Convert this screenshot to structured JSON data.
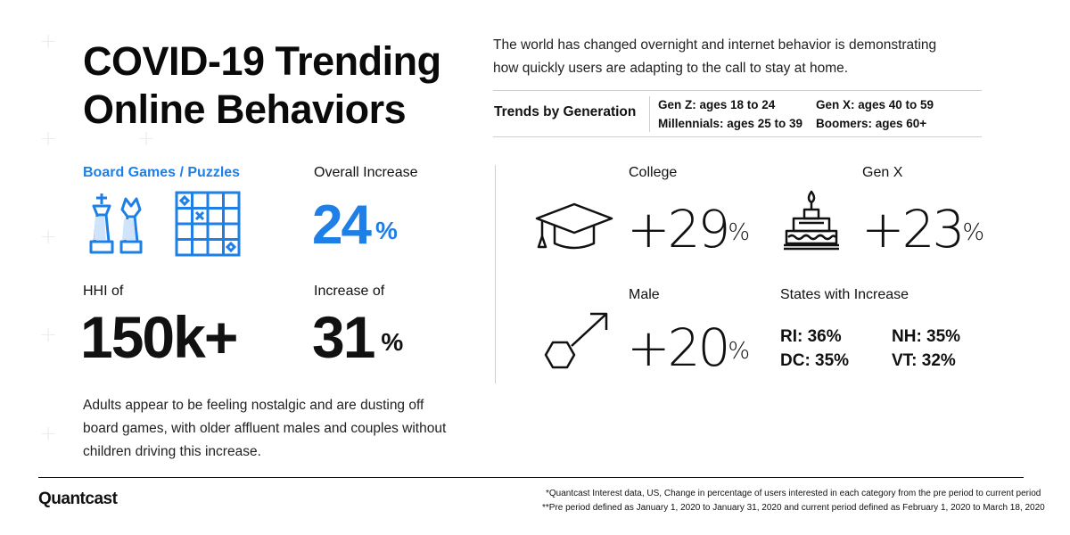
{
  "title": {
    "line1": "COVID-19 Trending",
    "line2": "Online Behaviors"
  },
  "intro": {
    "line1": "The world has changed overnight and internet behavior is demonstrating",
    "line2": "how quickly users are adapting to the call to stay at home."
  },
  "generations": {
    "heading": "Trends by Generation",
    "gen_z": "Gen Z: ages 18 to 24",
    "millennials": "Millennials: ages 25 to 39",
    "gen_x": "Gen X: ages 40 to 59",
    "boomers": "Boomers: ages 60+"
  },
  "category": {
    "label": "Board Games / Puzzles",
    "overall_label": "Overall Increase",
    "overall_value": "24",
    "overall_unit": "%",
    "hhi_label": "HHI of",
    "hhi_value": "150k+",
    "increase_label": "Increase of",
    "increase_value": "31",
    "increase_unit": "%"
  },
  "segments": {
    "college": {
      "label": "College",
      "value": "+29",
      "unit": "%",
      "icon": "graduation-cap-icon"
    },
    "genx": {
      "label": "Gen X",
      "value": "+23",
      "unit": "%",
      "icon": "birthday-cake-icon"
    },
    "male": {
      "label": "Male",
      "value": "+20",
      "unit": "%",
      "icon": "male-symbol-icon"
    },
    "states": {
      "label": "States with Increase",
      "ri": "RI: 36%",
      "nh": "NH: 35%",
      "dc": "DC: 35%",
      "vt": "VT: 32%"
    }
  },
  "description": {
    "line1": "Adults appear to be feeling nostalgic and are dusting off",
    "line2": "board games, with older affluent males and couples without",
    "line3": "children driving this increase."
  },
  "brand": "Quantcast",
  "footnotes": {
    "line1": "*Quantcast Interest data, US, Change in percentage of users interested in each category from the pre period to current period",
    "line2": "**Pre period defined as January 1, 2020   to January 31, 2020 and current period defined as February 1, 2020 to March 18, 2020"
  },
  "colors": {
    "accent": "#1e7fe6",
    "text": "#111111",
    "divider": "#cfcfcf"
  },
  "icons": [
    "chess-pieces-icon",
    "puzzle-grid-icon",
    "graduation-cap-icon",
    "birthday-cake-icon",
    "male-symbol-icon"
  ]
}
